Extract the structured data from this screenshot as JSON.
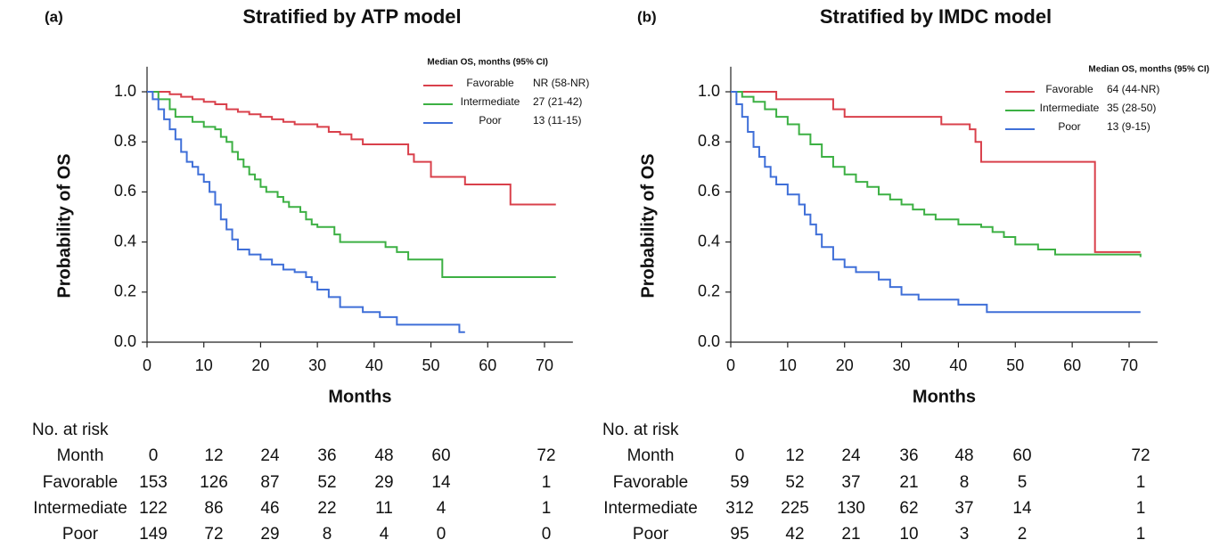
{
  "chart_data": [
    {
      "type": "line",
      "panel_label": "(a)",
      "title": "Stratified by ATP model",
      "xlabel": "Months",
      "ylabel": "Probability of OS",
      "xlim": [
        0,
        75
      ],
      "ylim": [
        0,
        1.1
      ],
      "xticks": [
        0,
        10,
        20,
        30,
        40,
        50,
        60,
        70
      ],
      "yticks": [
        {
          "value": 0,
          "label": "0.0"
        },
        {
          "value": 0.2,
          "label": "0.2"
        },
        {
          "value": 0.4,
          "label": "0.4"
        },
        {
          "value": 0.6,
          "label": "0.6"
        },
        {
          "value": 0.8,
          "label": "0.8"
        },
        {
          "value": 1,
          "label": "1.0"
        }
      ],
      "legend_title": "Median OS, months (95% CI)",
      "series": [
        {
          "name": "Favorable",
          "color": "#d9404b",
          "median": "NR (58-NR)",
          "x": [
            0,
            4,
            6,
            8,
            10,
            12,
            14,
            16,
            18,
            20,
            22,
            24,
            26,
            30,
            32,
            34,
            36,
            38,
            43,
            46,
            47,
            50,
            54,
            56,
            60,
            64,
            72
          ],
          "values": [
            1,
            0.99,
            0.98,
            0.97,
            0.96,
            0.95,
            0.93,
            0.92,
            0.91,
            0.9,
            0.89,
            0.88,
            0.87,
            0.86,
            0.84,
            0.83,
            0.81,
            0.79,
            0.79,
            0.75,
            0.72,
            0.66,
            0.66,
            0.63,
            0.63,
            0.55,
            0.55
          ]
        },
        {
          "name": "Intermediate",
          "color": "#3cb043",
          "median": "27 (21-42)",
          "x": [
            0,
            2,
            4,
            5,
            8,
            10,
            12,
            13,
            14,
            15,
            16,
            17,
            18,
            19,
            20,
            21,
            23,
            24,
            25,
            27,
            28,
            29,
            30,
            33,
            34,
            42,
            44,
            46,
            52,
            72
          ],
          "values": [
            1,
            0.97,
            0.93,
            0.9,
            0.88,
            0.86,
            0.85,
            0.82,
            0.8,
            0.76,
            0.73,
            0.7,
            0.67,
            0.65,
            0.62,
            0.6,
            0.58,
            0.56,
            0.54,
            0.52,
            0.49,
            0.47,
            0.46,
            0.43,
            0.4,
            0.38,
            0.36,
            0.33,
            0.26,
            0.26
          ]
        },
        {
          "name": "Poor",
          "color": "#3f6fd8",
          "median": "13 (11-15)",
          "x": [
            0,
            1,
            2,
            3,
            4,
            5,
            6,
            7,
            8,
            9,
            10,
            11,
            12,
            13,
            14,
            15,
            16,
            18,
            20,
            22,
            24,
            26,
            28,
            29,
            30,
            32,
            34,
            38,
            41,
            44,
            55,
            56
          ],
          "values": [
            1,
            0.97,
            0.93,
            0.89,
            0.85,
            0.81,
            0.76,
            0.72,
            0.7,
            0.67,
            0.64,
            0.6,
            0.55,
            0.49,
            0.45,
            0.41,
            0.37,
            0.35,
            0.33,
            0.31,
            0.29,
            0.28,
            0.26,
            0.24,
            0.21,
            0.18,
            0.14,
            0.12,
            0.1,
            0.07,
            0.04,
            0.04
          ]
        }
      ],
      "risk_table": {
        "title": "No. at risk",
        "header_label": "Month",
        "months": [
          0,
          12,
          24,
          36,
          48,
          60,
          72
        ],
        "rows": [
          {
            "name": "Favorable",
            "counts": [
              153,
              126,
              87,
              52,
              29,
              14,
              1
            ]
          },
          {
            "name": "Intermediate",
            "counts": [
              122,
              86,
              46,
              22,
              11,
              4,
              1
            ]
          },
          {
            "name": "Poor",
            "counts": [
              149,
              72,
              29,
              8,
              4,
              0,
              0
            ]
          }
        ]
      }
    },
    {
      "type": "line",
      "panel_label": "(b)",
      "title": "Stratified by IMDC model",
      "xlabel": "Months",
      "ylabel": "Probability of OS",
      "xlim": [
        0,
        75
      ],
      "ylim": [
        0,
        1.1
      ],
      "xticks": [
        0,
        10,
        20,
        30,
        40,
        50,
        60,
        70
      ],
      "yticks": [
        {
          "value": 0,
          "label": "0.0"
        },
        {
          "value": 0.2,
          "label": "0.2"
        },
        {
          "value": 0.4,
          "label": "0.4"
        },
        {
          "value": 0.6,
          "label": "0.6"
        },
        {
          "value": 0.8,
          "label": "0.8"
        },
        {
          "value": 1,
          "label": "1.0"
        }
      ],
      "legend_title": "Median OS, months (95% CI)",
      "series": [
        {
          "name": "Favorable",
          "color": "#d9404b",
          "median": "64 (44-NR)",
          "x": [
            0,
            8,
            18,
            20,
            37,
            42,
            43,
            44,
            64,
            72
          ],
          "values": [
            1,
            0.97,
            0.93,
            0.9,
            0.87,
            0.85,
            0.8,
            0.72,
            0.36,
            0.36
          ]
        },
        {
          "name": "Intermediate",
          "color": "#3cb043",
          "median": "35 (28-50)",
          "x": [
            0,
            2,
            4,
            6,
            8,
            10,
            12,
            14,
            16,
            18,
            20,
            22,
            24,
            26,
            28,
            30,
            32,
            34,
            36,
            40,
            44,
            46,
            48,
            50,
            54,
            57,
            72
          ],
          "values": [
            1,
            0.98,
            0.96,
            0.93,
            0.9,
            0.87,
            0.83,
            0.79,
            0.74,
            0.7,
            0.67,
            0.64,
            0.62,
            0.59,
            0.57,
            0.55,
            0.53,
            0.51,
            0.49,
            0.47,
            0.46,
            0.44,
            0.42,
            0.39,
            0.37,
            0.35,
            0.34
          ]
        },
        {
          "name": "Poor",
          "color": "#3f6fd8",
          "median": "13 (9-15)",
          "x": [
            0,
            1,
            2,
            3,
            4,
            5,
            6,
            7,
            8,
            10,
            12,
            13,
            14,
            15,
            16,
            18,
            20,
            22,
            26,
            28,
            30,
            33,
            40,
            45,
            72
          ],
          "values": [
            1,
            0.95,
            0.9,
            0.84,
            0.78,
            0.74,
            0.7,
            0.66,
            0.63,
            0.59,
            0.55,
            0.51,
            0.47,
            0.43,
            0.38,
            0.33,
            0.3,
            0.28,
            0.25,
            0.22,
            0.19,
            0.17,
            0.15,
            0.12,
            0.12
          ]
        }
      ],
      "risk_table": {
        "title": "No. at risk",
        "header_label": "Month",
        "months": [
          0,
          12,
          24,
          36,
          48,
          60,
          72
        ],
        "rows": [
          {
            "name": "Favorable",
            "counts": [
              59,
              52,
              37,
              21,
              8,
              5,
              1
            ]
          },
          {
            "name": "Intermediate",
            "counts": [
              312,
              225,
              130,
              62,
              37,
              14,
              1
            ]
          },
          {
            "name": "Poor",
            "counts": [
              95,
              42,
              21,
              10,
              3,
              2,
              1
            ]
          }
        ]
      }
    }
  ]
}
